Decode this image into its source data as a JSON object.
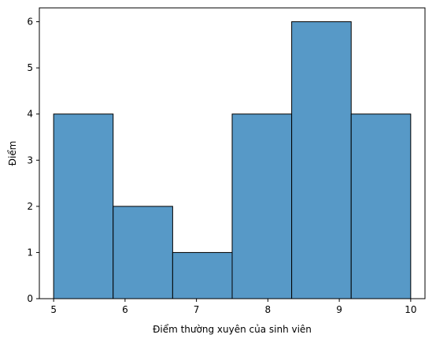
{
  "chart_data": {
    "type": "bar",
    "title": "",
    "xlabel": "Điểm thường xuyên của sinh viên",
    "ylabel": "Điểm",
    "xlim": [
      4.8,
      10.2
    ],
    "ylim": [
      0,
      6.3
    ],
    "xticks": [
      5,
      6,
      7,
      8,
      9,
      10
    ],
    "yticks": [
      0,
      1,
      2,
      3,
      4,
      5,
      6
    ],
    "bins": [
      {
        "x0": 5.0,
        "x1": 5.8333,
        "value": 4
      },
      {
        "x0": 5.8333,
        "x1": 6.6667,
        "value": 2
      },
      {
        "x0": 6.6667,
        "x1": 7.5,
        "value": 1
      },
      {
        "x0": 7.5,
        "x1": 8.3333,
        "value": 4
      },
      {
        "x0": 8.3333,
        "x1": 9.1667,
        "value": 6
      },
      {
        "x0": 9.1667,
        "x1": 10.0,
        "value": 4
      }
    ],
    "bar_color": "#5799c7",
    "edge_color": "#000000",
    "grid": false,
    "legend": "none"
  }
}
